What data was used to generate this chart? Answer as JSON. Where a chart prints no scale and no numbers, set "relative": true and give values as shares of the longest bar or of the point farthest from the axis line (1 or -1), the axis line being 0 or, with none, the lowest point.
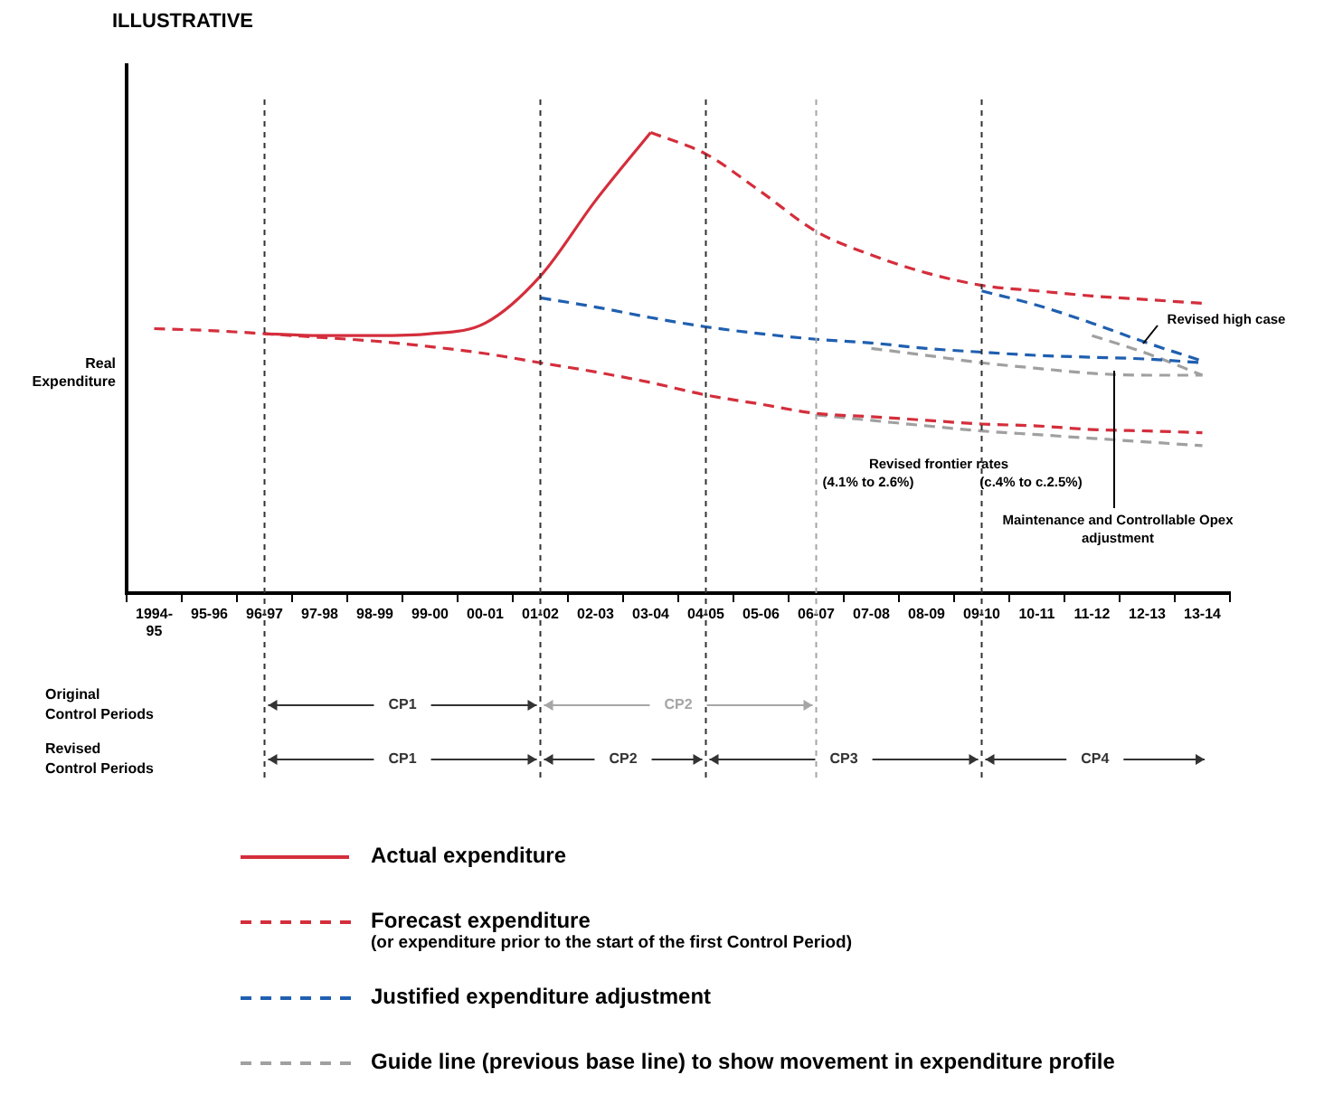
{
  "chart_data": {
    "type": "line",
    "subtitle": "ILLUSTRATIVE",
    "ylabel": "Real Expenditure",
    "relative": true,
    "categories": [
      "1994-95",
      "95-96",
      "96-97",
      "97-98",
      "98-99",
      "99-00",
      "00-01",
      "01-02",
      "02-03",
      "03-04",
      "04-05",
      "05-06",
      "06-07",
      "07-08",
      "08-09",
      "09-10",
      "10-11",
      "11-12",
      "12-13",
      "13-14"
    ],
    "grid": false,
    "marker": "none",
    "legend": "bottom",
    "ref_lines": [
      {
        "axis": "x",
        "value": "96-97",
        "color": "#333333",
        "line_style": "dashed"
      },
      {
        "axis": "x",
        "value": "01-02",
        "color": "#333333",
        "line_style": "dashed"
      },
      {
        "axis": "x",
        "value": "04-05",
        "color": "#333333",
        "line_style": "dashed"
      },
      {
        "axis": "x",
        "value": "06-07",
        "color": "#a6a6a6",
        "line_style": "dashed"
      },
      {
        "axis": "x",
        "value": "09-10",
        "color": "#333333",
        "line_style": "dashed"
      }
    ],
    "annotations": [
      "Original Control Periods",
      "CP1",
      "CP2",
      "Revised Control Periods",
      "CP1",
      "CP2",
      "CP3",
      "CP4",
      "Revised high case",
      "Revised frontier rates",
      "(4.1% to 2.6%)",
      "(c.4% to c.2.5%)",
      "Maintenance and Controllable Opex adjustment"
    ],
    "series": [
      {
        "name": "Actual expenditure",
        "color": "#d42e3c",
        "line_style": "solid",
        "values": [
          null,
          null,
          0.563,
          0.559,
          0.559,
          0.563,
          0.586,
          0.688,
          0.852,
          1,
          null,
          null,
          null,
          null,
          null,
          null,
          null,
          null,
          null,
          null
        ]
      },
      {
        "name": "Forecast expenditure\n(or expenditure prior to the start of the first Control Period)",
        "color": "#d42e3c",
        "line_style": "dashed",
        "values": [
          0.574,
          0.57,
          0.563,
          0.555,
          0.547,
          0.535,
          0.52,
          0.5,
          0.48,
          0.457,
          0.43,
          0.41,
          0.39,
          0.383,
          0.375,
          0.367,
          0.363,
          0.355,
          0.352,
          0.348
        ]
      },
      {
        "color": "#d42e3c",
        "line_style": "dashed",
        "values": [
          null,
          null,
          null,
          null,
          null,
          null,
          null,
          null,
          null,
          1,
          0.953,
          0.871,
          0.785,
          0.734,
          0.695,
          0.668,
          0.656,
          0.645,
          0.637,
          0.629
        ]
      },
      {
        "name": "Justified expenditure adjustment",
        "color": "#1f5fb0",
        "line_style": "dashed",
        "values": [
          null,
          null,
          null,
          null,
          null,
          null,
          null,
          0.641,
          0.621,
          0.598,
          0.578,
          0.563,
          0.551,
          0.543,
          0.531,
          0.523,
          0.516,
          0.512,
          0.508,
          0.5
        ]
      },
      {
        "color": "#1f5fb0",
        "line_style": "dashed",
        "values": [
          null,
          null,
          null,
          null,
          null,
          null,
          null,
          null,
          null,
          null,
          null,
          null,
          null,
          null,
          null,
          0.656,
          0.625,
          0.586,
          0.543,
          0.504
        ]
      },
      {
        "name": "Guide line (previous base line) to show movement in expenditure profile",
        "color": "#a0a0a0",
        "line_style": "dashed",
        "values": [
          null,
          null,
          null,
          null,
          null,
          null,
          null,
          null,
          null,
          null,
          null,
          null,
          null,
          0.531,
          0.516,
          0.5,
          0.488,
          0.477,
          0.473,
          0.473
        ]
      },
      {
        "color": "#a0a0a0",
        "line_style": "dashed",
        "values": [
          null,
          null,
          null,
          null,
          null,
          null,
          null,
          null,
          null,
          null,
          null,
          null,
          null,
          null,
          null,
          null,
          null,
          0.559,
          0.52,
          0.473
        ]
      },
      {
        "color": "#a0a0a0",
        "line_style": "dashed",
        "values": [
          null,
          null,
          null,
          null,
          null,
          null,
          null,
          null,
          null,
          null,
          null,
          null,
          0.387,
          0.375,
          0.363,
          0.352,
          0.344,
          0.336,
          0.328,
          0.32
        ]
      }
    ]
  }
}
